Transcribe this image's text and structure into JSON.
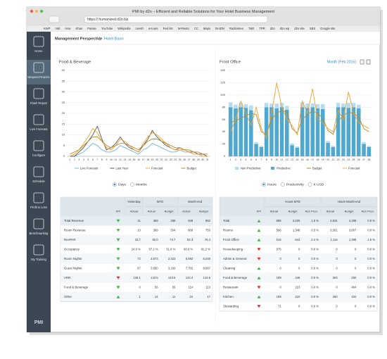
{
  "browser": {
    "title": "PMI by d2o – Efficient and Reliable Solutions for Your Hotel Business Management",
    "url": "https:// humanized.d2o.biz",
    "bookmarks": [
      "KWP",
      "mkt",
      "Anw",
      "Khan",
      "Passie",
      "YouTube",
      "Wikipedia",
      "Leesh",
      "w-tours",
      "Red list",
      "W-Resto",
      "CC",
      "Maps",
      "BAIDN",
      "Radioimee",
      "T&R",
      "TPR",
      "d2o",
      "d2o wp",
      "d2o site",
      "SBS",
      "Google site"
    ]
  },
  "sidebar": [
    "Home",
    "Management Perspective",
    "Flash Report",
    "Live Forecast",
    "Configure",
    "Schedule",
    "Profit & Loss",
    "Benchmarking",
    "My Training"
  ],
  "sidebar_active": 1,
  "logo": "PMI",
  "breadcrumb": [
    "Management Perspective",
    "Hotel Baan"
  ],
  "chart_data": [
    {
      "type": "line",
      "title": "Food & Beverage",
      "categories": [
        "1",
        "2",
        "3",
        "4",
        "5",
        "6",
        "7",
        "8",
        "9",
        "10",
        "11",
        "12",
        "13",
        "14",
        "15",
        "16",
        "17",
        "18",
        "19",
        "20",
        "21",
        "22",
        "23",
        "24",
        "25",
        "26",
        "27",
        "28",
        "29",
        "30",
        "31"
      ],
      "ylim": [
        0,
        40
      ],
      "yticks": [
        0,
        5,
        10,
        15,
        20,
        25,
        30,
        35,
        40
      ],
      "grid": true,
      "series": [
        {
          "name": "Live Forecast",
          "color": "#6fb3d8",
          "values": [
            0,
            0,
            1,
            2,
            4,
            6,
            5,
            3,
            2,
            2,
            3,
            5,
            4,
            3,
            2,
            1,
            3,
            4,
            6,
            5,
            4,
            3,
            2,
            2,
            3,
            2,
            2,
            1,
            1,
            0,
            0
          ]
        },
        {
          "name": "Last Year",
          "color": "#555555",
          "values": [
            0,
            0,
            2,
            4,
            7,
            10,
            14,
            8,
            3,
            4,
            6,
            9,
            6,
            4,
            3,
            2,
            5,
            8,
            12,
            9,
            7,
            5,
            4,
            3,
            4,
            3,
            2,
            2,
            1,
            1,
            0
          ]
        },
        {
          "name": "Forecast",
          "color": "#f0a030",
          "values": [
            0,
            1,
            3,
            6,
            9,
            13,
            11,
            7,
            4,
            3,
            5,
            8,
            7,
            5,
            3,
            2,
            6,
            9,
            11,
            10,
            8,
            6,
            4,
            3,
            3,
            3,
            2,
            1,
            1,
            0,
            0
          ]
        },
        {
          "name": "Budget",
          "color": "#b08a2a",
          "values": [
            1,
            2,
            3,
            5,
            7,
            9,
            9,
            7,
            5,
            4,
            5,
            6,
            6,
            5,
            4,
            3,
            5,
            7,
            8,
            8,
            7,
            6,
            5,
            4,
            4,
            3,
            3,
            2,
            2,
            1,
            1
          ]
        }
      ],
      "toggle": {
        "options": [
          "Days",
          "Months"
        ],
        "selected": 0
      }
    },
    {
      "type": "bar",
      "title": "Front Office",
      "period": "Month (Feb 2015)",
      "categories": [
        "1",
        "2",
        "3",
        "4",
        "5",
        "6",
        "7",
        "8",
        "9",
        "10",
        "11",
        "12",
        "13",
        "14",
        "15",
        "16",
        "17",
        "18",
        "19",
        "20",
        "21",
        "22",
        "23",
        "24",
        "25",
        "26",
        "27",
        "28"
      ],
      "ylim": [
        0,
        140
      ],
      "yticks": [
        0,
        20,
        40,
        60,
        80,
        100,
        120,
        140
      ],
      "grid": true,
      "series": [
        {
          "name": "Non Productive",
          "color": "#b8dcee",
          "kind": "bar",
          "values": [
            8,
            6,
            7,
            6,
            8,
            3,
            2,
            7,
            6,
            8,
            7,
            6,
            3,
            2,
            8,
            7,
            6,
            7,
            8,
            3,
            2,
            7,
            6,
            8,
            7,
            6,
            3,
            2
          ]
        },
        {
          "name": "Productive",
          "color": "#4fa8d0",
          "kind": "bar",
          "values": [
            80,
            78,
            80,
            79,
            75,
            20,
            15,
            80,
            80,
            78,
            80,
            76,
            18,
            14,
            80,
            79,
            80,
            78,
            77,
            22,
            15,
            80,
            80,
            79,
            80,
            78,
            20,
            15
          ]
        },
        {
          "name": "Budget",
          "color": "#b08a2a",
          "kind": "line",
          "values": [
            55,
            58,
            62,
            66,
            70,
            68,
            40,
            35,
            60,
            70,
            75,
            72,
            45,
            38,
            60,
            68,
            74,
            70,
            62,
            42,
            36,
            58,
            66,
            72,
            70,
            64,
            45,
            40
          ]
        },
        {
          "name": "Forecast",
          "color": "#f0a030",
          "kind": "line",
          "values": [
            40,
            60,
            90,
            70,
            50,
            80,
            45,
            30,
            70,
            120,
            80,
            60,
            50,
            35,
            90,
            70,
            110,
            60,
            55,
            45,
            40,
            75,
            60,
            105,
            70,
            55,
            50,
            45
          ]
        }
      ],
      "toggle": {
        "options": [
          "Hours",
          "Productivity",
          "K USD"
        ],
        "selected": 0
      }
    }
  ],
  "table_left": {
    "kpi_header": "KPI",
    "groups": [
      {
        "name": "Yesterday",
        "columns": [
          "Actual"
        ]
      },
      {
        "name": "MTD",
        "columns": [
          "Actual",
          "Budget"
        ]
      },
      {
        "name": "Month-end",
        "columns": [
          "Actual",
          "Budget"
        ]
      }
    ],
    "rows": [
      {
        "label": "Total Revenue",
        "kpi": "down-green",
        "cells": [
          "11",
          "459",
          "399",
          "948",
          "862"
        ]
      },
      {
        "label": "Room Revenue",
        "kpi": "down-green",
        "cells": [
          "10",
          "369",
          "334",
          "809",
          "753"
        ]
      },
      {
        "label": "RevPAR",
        "kpi": "down-green",
        "cells": [
          "32.7",
          "82.0",
          "74.7",
          "82.3",
          "76.4"
        ]
      },
      {
        "label": "Occupancy",
        "kpi": "down-green",
        "cells": [
          "24.0 %",
          "57.2 %",
          "51.6 %",
          "60.6 %",
          "61.2 %"
        ]
      },
      {
        "label": "Room Nights",
        "kpi": "down-green",
        "cells": [
          "72",
          "2,573",
          "2,323",
          "5,592",
          "5,048"
        ]
      },
      {
        "label": "Guest Nights",
        "kpi": "down-green",
        "cells": [
          "87",
          "3,650",
          "3,193",
          "7,702",
          "8,667"
        ]
      },
      {
        "label": "ARR",
        "kpi": "down-red",
        "cells": [
          "136.1",
          "143.5",
          "143.6",
          "144.4",
          "144.6"
        ]
      },
      {
        "label": "Food & Beverage",
        "kpi": "down-green",
        "cells": [
          "0",
          "56",
          "55",
          "114",
          "113"
        ]
      },
      {
        "label": "Other",
        "kpi": "up-green",
        "cells": [
          "1",
          "14",
          "11",
          "24",
          "17"
        ]
      }
    ]
  },
  "table_right": {
    "kpi_header": "KPI",
    "groups": [
      {
        "name": "Hours MTD",
        "columns": [
          "Actual",
          "Budget",
          "Non Prod."
        ]
      },
      {
        "name": "Hours Month-end",
        "columns": [
          "Actual",
          "Budget",
          "Non Prod."
        ]
      }
    ],
    "rows": [
      {
        "label": "Total",
        "kpi": "up-green",
        "cells": [
          "886",
          "2,025",
          "1.6 %",
          "2,941",
          "4,288",
          "0.9 %"
        ]
      },
      {
        "label": "Rooms",
        "kpi": "up-green",
        "cells": [
          "596",
          "1,348",
          "0.3 %",
          "3,301",
          "3,007",
          "0.0 %"
        ]
      },
      {
        "label": "Front Office",
        "kpi": "up-green",
        "cells": [
          "516",
          "642",
          "2.4 %",
          "1,116",
          "1,398",
          "1.6 %"
        ]
      },
      {
        "label": "Housekeeping",
        "kpi": "down-red",
        "cells": [
          "975",
          "0",
          "0.0 %",
          "0",
          "0",
          "0.0 %"
        ]
      },
      {
        "label": "Admin & General",
        "kpi": "down-red",
        "cells": [
          "0",
          "0",
          "0.0 %",
          "0",
          "0",
          "0.0 %"
        ]
      },
      {
        "label": "Cleaning",
        "kpi": "up-green",
        "cells": [
          "0",
          "0",
          "0.0 %",
          "0",
          "0",
          "0.0 %"
        ]
      },
      {
        "label": "Food & Beverage",
        "kpi": "up-green",
        "cells": [
          "189",
          "446",
          "0.0 %",
          "304",
          "250",
          "0.0 %"
        ]
      },
      {
        "label": "Restaurant",
        "kpi": "down-red",
        "cells": [
          "0",
          "223",
          "0.0 %",
          "0",
          "404",
          "0.0 %"
        ]
      },
      {
        "label": "Kitchen",
        "kpi": "up-green",
        "cells": [
          "189",
          "210",
          "0.0 %",
          "280",
          "434",
          "0.0 %"
        ]
      },
      {
        "label": "Stewarding",
        "kpi": "down-red",
        "cells": [
          "71",
          "0",
          "0.0 %",
          "0",
          "0",
          "0.0 %"
        ]
      }
    ]
  }
}
